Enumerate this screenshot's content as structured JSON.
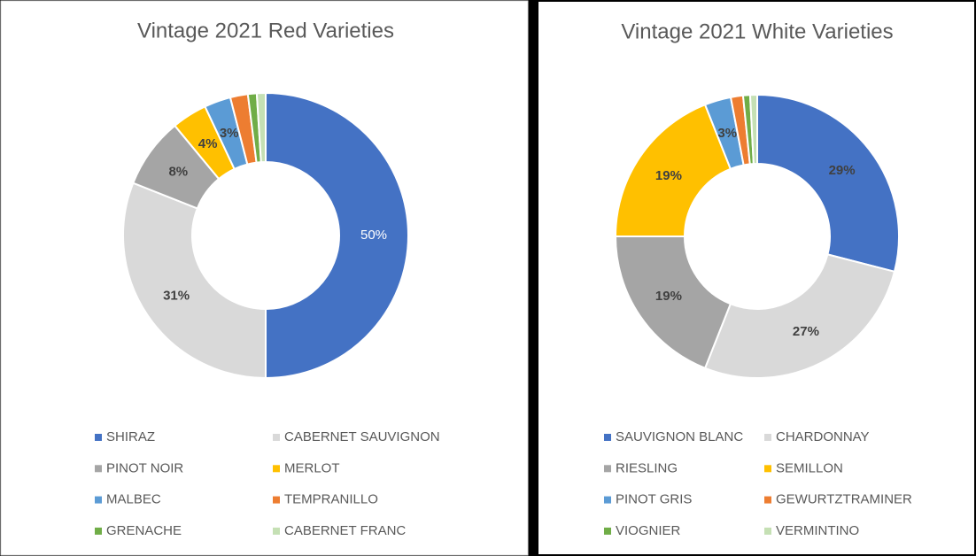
{
  "chart_data": [
    {
      "type": "donut",
      "title": "Vintage 2021 Red Varieties",
      "categories": [
        "SHIRAZ",
        "CABERNET SAUVIGNON",
        "PINOT NOIR",
        "MERLOT",
        "MALBEC",
        "TEMPRANILLO",
        "GRENACHE",
        "CABERNET FRANC"
      ],
      "values": [
        50,
        31,
        8,
        4,
        3,
        2,
        1,
        1
      ],
      "value_labels": [
        "50%",
        "31%",
        "8%",
        "4%",
        "3%",
        null,
        null,
        null
      ],
      "colors": [
        "#4472C4",
        "#D9D9D9",
        "#A5A5A5",
        "#FFC000",
        "#5B9BD5",
        "#ED7D31",
        "#70AD47",
        "#C5E0B4"
      ],
      "legend": "bottom"
    },
    {
      "type": "donut",
      "title": "Vintage 2021 White Varieties",
      "categories": [
        "SAUVIGNON BLANC",
        "CHARDONNAY",
        "RIESLING",
        "SEMILLON",
        "PINOT GRIS",
        "GEWURTZTRAMINER",
        "VIOGNIER",
        "VERMINTINO"
      ],
      "values": [
        29,
        27,
        19,
        19,
        3,
        1.4,
        0.8,
        0.8
      ],
      "value_labels": [
        "29%",
        "27%",
        "19%",
        "19%",
        "3%",
        null,
        null,
        null
      ],
      "colors": [
        "#4472C4",
        "#D9D9D9",
        "#A5A5A5",
        "#FFC000",
        "#5B9BD5",
        "#ED7D31",
        "#70AD47",
        "#C5E0B4"
      ],
      "legend": "bottom"
    }
  ]
}
